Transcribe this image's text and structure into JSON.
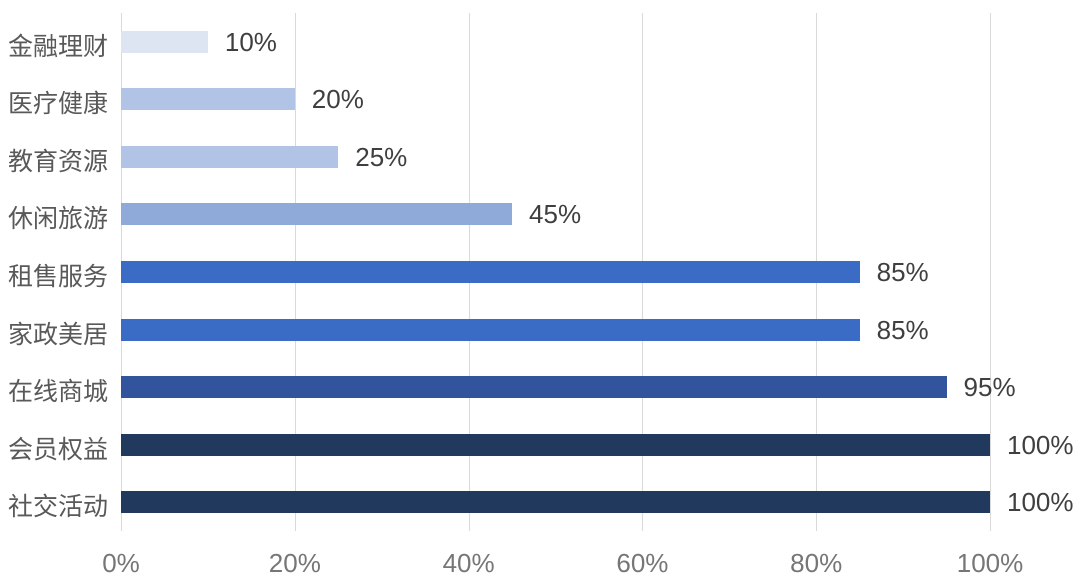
{
  "chart_data": {
    "type": "bar",
    "orientation": "horizontal",
    "title": "",
    "xlabel": "",
    "ylabel": "",
    "categories": [
      "金融理财",
      "医疗健康",
      "教育资源",
      "休闲旅游",
      "租售服务",
      "家政美居",
      "在线商城",
      "会员权益",
      "社交活动"
    ],
    "values": [
      10,
      20,
      25,
      45,
      85,
      85,
      95,
      100,
      100
    ],
    "value_labels": [
      "10%",
      "20%",
      "25%",
      "45%",
      "85%",
      "85%",
      "95%",
      "100%",
      "100%"
    ],
    "bar_colors": [
      "#dde5f3",
      "#b2c4e6",
      "#b2c4e6",
      "#8faad9",
      "#3a6cc5",
      "#3a6cc5",
      "#31549c",
      "#22395e",
      "#22395e"
    ],
    "x_tick_labels": [
      "0%",
      "20%",
      "40%",
      "60%",
      "80%",
      "100%"
    ],
    "x_tick_values": [
      0,
      20,
      40,
      60,
      80,
      100
    ],
    "xlim": [
      0,
      100
    ],
    "grid": "vertical-only",
    "legend": "none",
    "colors": {
      "background": "#ffffff",
      "gridline": "#d9d9d9",
      "category_label": "#595959",
      "value_label": "#3f3f3f",
      "tick_label": "#767676"
    }
  }
}
